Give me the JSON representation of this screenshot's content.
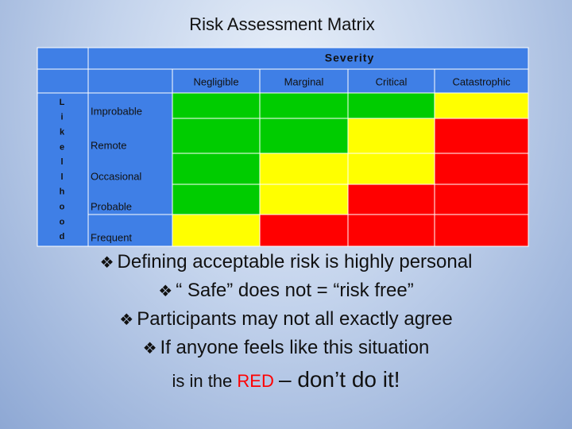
{
  "title": "Risk Assessment Matrix",
  "matrix": {
    "severity_label": "Severity",
    "columns": [
      "Negligible",
      "Marginal",
      "Critical",
      "Catastrophic"
    ],
    "likelihood_letters": [
      "L",
      "i",
      "k",
      "e",
      "l",
      "l",
      "h",
      "o",
      "o",
      "d"
    ],
    "rows": [
      {
        "label": "Improbable",
        "cells": [
          "#00cc00",
          "#00cc00",
          "#00cc00",
          "#ffff00"
        ]
      },
      {
        "label": "Remote",
        "cells": [
          "#00cc00",
          "#00cc00",
          "#ffff00",
          "#ff0000"
        ]
      },
      {
        "label": "Occasional",
        "cells": [
          "#00cc00",
          "#ffff00",
          "#ffff00",
          "#ff0000"
        ]
      },
      {
        "label": "Probable",
        "cells": [
          "#00cc00",
          "#ffff00",
          "#ff0000",
          "#ff0000"
        ]
      },
      {
        "label": "Frequent",
        "cells": [
          "#ffff00",
          "#ff0000",
          "#ff0000",
          "#ff0000"
        ]
      }
    ]
  },
  "bullet_symbol": "❖",
  "bullets": [
    "Defining acceptable risk is highly personal",
    "“ Safe” does not = “risk free”",
    "Participants may not all exactly agree",
    "If anyone feels like this situation"
  ],
  "closing": [
    "is in the",
    "RED",
    "– don’t do it!"
  ]
}
